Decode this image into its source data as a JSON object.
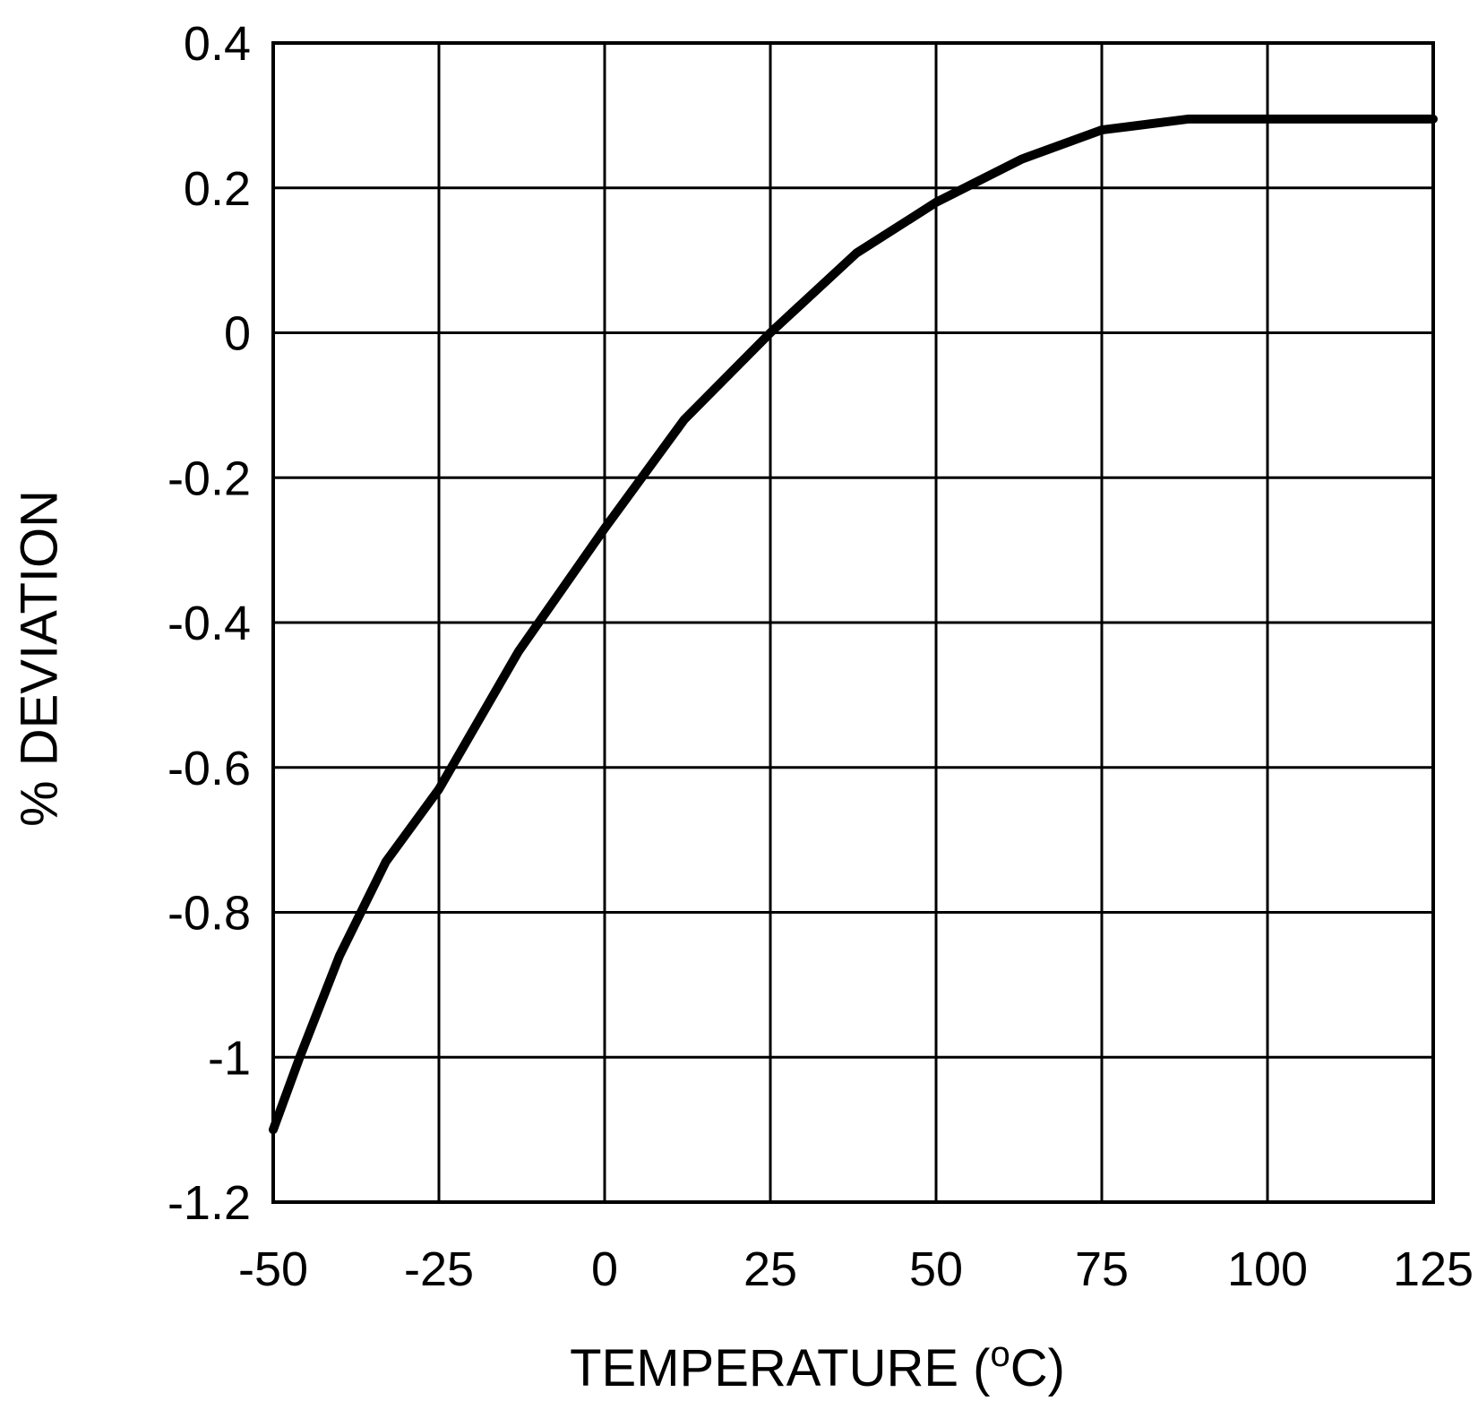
{
  "chart_data": {
    "type": "line",
    "title": "",
    "xlabel": "TEMPERATURE (",
    "xlabel_sup": "o",
    "xlabel_unit": "C)",
    "ylabel": "% DEVIATION",
    "xlim": [
      -50,
      125
    ],
    "ylim": [
      -1.2,
      0.4
    ],
    "x_ticks": [
      -50,
      -25,
      0,
      25,
      50,
      75,
      100,
      125
    ],
    "x_tick_labels": [
      "-50",
      "-25",
      "0",
      "25",
      "50",
      "75",
      "100",
      "125"
    ],
    "y_ticks": [
      0.4,
      0.2,
      0,
      -0.2,
      -0.4,
      -0.6,
      -0.8,
      -1,
      -1.2
    ],
    "y_tick_labels": [
      "0.4",
      "0.2",
      "0",
      "-0.2",
      "-0.4",
      "-0.6",
      "-0.8",
      "-1",
      "-1.2"
    ],
    "grid": true,
    "legend": "none",
    "series": [
      {
        "color": "#000000",
        "x": [
          -50,
          -46,
          -40,
          -33,
          -25,
          -13,
          0,
          12,
          25,
          38,
          50,
          63,
          75,
          88,
          100,
          125
        ],
        "y": [
          -1.1,
          -1.0,
          -0.86,
          -0.73,
          -0.63,
          -0.44,
          -0.27,
          -0.12,
          0.0,
          0.11,
          0.18,
          0.24,
          0.28,
          0.295,
          0.295,
          0.295
        ]
      }
    ]
  }
}
